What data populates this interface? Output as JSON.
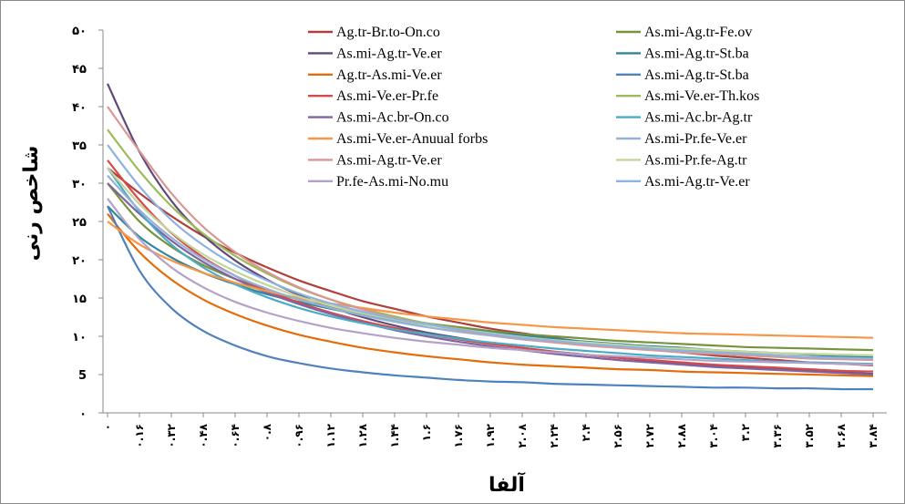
{
  "chart_data": {
    "type": "line",
    "xlabel": "آلفا",
    "ylabel": "شاخص رنی",
    "ylim": [
      0,
      50
    ],
    "xlim": [
      0,
      3.84
    ],
    "y_ticks": [
      0,
      5,
      10,
      15,
      20,
      25,
      30,
      35,
      40,
      45,
      50
    ],
    "y_tick_labels": [
      "۰",
      "5",
      "۱۰",
      "۱۵",
      "۲۰",
      "۲۵",
      "۳۰",
      "۳۵",
      "۴۰",
      "۴۵",
      "۵۰"
    ],
    "x_ticks": [
      0,
      0.16,
      0.32,
      0.48,
      0.64,
      0.8,
      0.96,
      1.12,
      1.28,
      1.44,
      1.6,
      1.76,
      1.92,
      2.08,
      2.24,
      2.4,
      2.56,
      2.72,
      2.88,
      3.04,
      3.2,
      3.36,
      3.52,
      3.68,
      3.84
    ],
    "x_tick_labels": [
      "۰",
      "۰.۱۶",
      "۰.۳۲",
      "۰.۴۸",
      "۰.۶۴",
      "۰.۸",
      "۰.۹۶",
      "۱.۱۲",
      "۱.۲۸",
      "۱.۴۴",
      "۱.۶",
      "۱.۷۶",
      "۱.۹۲",
      "۲.۰۸",
      "۲.۲۴",
      "۲.۴",
      "۲.۵۶",
      "۲.۷۲",
      "۲.۸۸",
      "۳.۰۴",
      "۳.۲",
      "۳.۳۶",
      "۳.۵۲",
      "۳.۶۸",
      "۳.۸۴"
    ],
    "grid": false,
    "legend_position": "top-right",
    "x": [
      0,
      0.16,
      0.32,
      0.48,
      0.64,
      0.8,
      0.96,
      1.12,
      1.28,
      1.44,
      1.6,
      1.76,
      1.92,
      2.08,
      2.24,
      2.4,
      2.56,
      2.72,
      2.88,
      3.04,
      3.2,
      3.36,
      3.52,
      3.68,
      3.84
    ],
    "series": [
      {
        "name": "Ag.tr-Br.to-On.co",
        "color": "#b0403c",
        "values": [
          32.0,
          28.7,
          25.7,
          23.1,
          20.9,
          19.0,
          17.3,
          15.9,
          14.6,
          13.6,
          12.6,
          11.8,
          11.0,
          10.4,
          9.8,
          9.2,
          8.8,
          8.3,
          7.9,
          7.5,
          7.2,
          6.9,
          6.6,
          6.4,
          6.2
        ]
      },
      {
        "name": "As.mi-Ag.tr-Fe.ov",
        "color": "#77933c",
        "values": [
          30.0,
          25.0,
          21.7,
          19.3,
          17.5,
          16.0,
          14.8,
          13.8,
          13.0,
          12.3,
          11.7,
          11.2,
          10.7,
          10.3,
          10.0,
          9.7,
          9.4,
          9.2,
          9.0,
          8.8,
          8.6,
          8.5,
          8.4,
          8.3,
          8.2
        ]
      },
      {
        "name": "As.mi-Ag.tr-Ve.er",
        "color": "#604a7b",
        "values": [
          43.0,
          34.1,
          27.7,
          23.2,
          19.9,
          17.4,
          15.4,
          13.8,
          12.5,
          11.4,
          10.5,
          9.8,
          9.1,
          8.5,
          8.0,
          7.6,
          7.2,
          6.8,
          6.5,
          6.2,
          5.9,
          5.7,
          5.5,
          5.3,
          5.1
        ]
      },
      {
        "name": "As.mi-Ag.tr-St.ba",
        "color": "#31859c",
        "values": [
          27.0,
          23.0,
          20.3,
          18.3,
          16.8,
          15.5,
          14.5,
          13.6,
          12.8,
          12.1,
          11.5,
          11.0,
          10.5,
          10.1,
          9.7,
          9.3,
          9.0,
          8.7,
          8.5,
          8.2,
          8.0,
          7.8,
          7.6,
          7.4,
          7.3
        ]
      },
      {
        "name": "Ag.tr-As.mi-Ve.er",
        "color": "#e46c0a",
        "values": [
          26.0,
          21.0,
          17.4,
          14.8,
          12.9,
          11.4,
          10.2,
          9.3,
          8.5,
          7.9,
          7.4,
          7.0,
          6.6,
          6.3,
          6.1,
          5.9,
          5.7,
          5.6,
          5.4,
          5.3,
          5.2,
          5.1,
          5.0,
          4.9,
          4.8
        ]
      },
      {
        "name": "As.mi-Ag.tr-St.ba",
        "color": "#4f81bd",
        "values": [
          27.0,
          18.6,
          13.7,
          10.7,
          8.8,
          7.4,
          6.5,
          5.8,
          5.3,
          4.9,
          4.6,
          4.3,
          4.1,
          4.0,
          3.8,
          3.7,
          3.6,
          3.5,
          3.4,
          3.3,
          3.3,
          3.2,
          3.2,
          3.1,
          3.1
        ]
      },
      {
        "name": "As.mi-Ve.er-Pr.fe",
        "color": "#d84a4a",
        "values": [
          33.0,
          27.8,
          23.5,
          20.3,
          17.9,
          16.0,
          14.4,
          13.1,
          12.0,
          11.1,
          10.3,
          9.6,
          9.0,
          8.5,
          8.0,
          7.6,
          7.2,
          6.9,
          6.6,
          6.3,
          6.1,
          5.9,
          5.7,
          5.5,
          5.4
        ]
      },
      {
        "name": "As.mi-Ve.er-Th.kos",
        "color": "#9bbb59",
        "values": [
          37.0,
          31.6,
          27.0,
          23.4,
          20.5,
          18.2,
          16.3,
          14.8,
          13.6,
          12.6,
          11.7,
          11.0,
          10.4,
          9.9,
          9.5,
          9.1,
          8.8,
          8.5,
          8.3,
          8.1,
          7.9,
          7.8,
          7.7,
          7.6,
          7.5
        ]
      },
      {
        "name": "As.mi-Ac.br-On.co",
        "color": "#8064a2",
        "values": [
          30.0,
          26.0,
          22.5,
          19.7,
          17.5,
          15.7,
          14.2,
          12.9,
          11.8,
          10.8,
          10.0,
          9.3,
          8.7,
          8.2,
          7.7,
          7.3,
          6.9,
          6.6,
          6.3,
          6.0,
          5.8,
          5.6,
          5.4,
          5.2,
          5.0
        ]
      },
      {
        "name": "As.mi-Ac.br-Ag.tr",
        "color": "#4bacc6",
        "values": [
          32.0,
          26.3,
          22.0,
          19.0,
          16.8,
          15.1,
          13.7,
          12.6,
          11.7,
          10.9,
          10.3,
          9.7,
          9.2,
          8.8,
          8.4,
          8.1,
          7.8,
          7.5,
          7.3,
          7.1,
          6.9,
          6.7,
          6.6,
          6.5,
          6.4
        ]
      },
      {
        "name": "As.mi-Ve.er-Anuual forbs",
        "color": "#f79646",
        "values": [
          25.0,
          22.0,
          19.9,
          18.3,
          17.0,
          15.9,
          15.0,
          14.3,
          13.7,
          13.1,
          12.6,
          12.2,
          11.8,
          11.5,
          11.2,
          11.0,
          10.8,
          10.6,
          10.4,
          10.3,
          10.2,
          10.1,
          10.0,
          9.9,
          9.8
        ]
      },
      {
        "name": "As.mi-Pr.fe-Ve.er",
        "color": "#95b3d7",
        "values": [
          31.0,
          26.5,
          22.9,
          20.1,
          17.9,
          16.2,
          14.8,
          13.7,
          12.7,
          11.9,
          11.2,
          10.6,
          10.1,
          9.6,
          9.2,
          8.9,
          8.6,
          8.3,
          8.0,
          7.8,
          7.6,
          7.4,
          7.2,
          7.1,
          7.0
        ]
      },
      {
        "name": "As.mi-Ag.tr-Ve.er",
        "color": "#d99694",
        "values": [
          40.0,
          34.2,
          28.7,
          24.3,
          21.0,
          18.4,
          16.4,
          14.8,
          13.5,
          12.4,
          11.6,
          10.8,
          10.2,
          9.7,
          9.2,
          8.8,
          8.5,
          8.2,
          7.9,
          7.7,
          7.5,
          7.3,
          7.1,
          7.0,
          6.9
        ]
      },
      {
        "name": "As.mi-Pr.fe-Ag.tr",
        "color": "#c3d69b",
        "values": [
          32.0,
          27.3,
          23.6,
          20.7,
          18.5,
          16.7,
          15.2,
          14.0,
          13.0,
          12.2,
          11.5,
          10.9,
          10.4,
          9.9,
          9.5,
          9.2,
          8.9,
          8.6,
          8.4,
          8.2,
          8.0,
          7.8,
          7.7,
          7.6,
          7.5
        ]
      },
      {
        "name": "Pr.fe-As.mi-No.mu",
        "color": "#b3a2c7",
        "values": [
          28.0,
          22.7,
          19.0,
          16.4,
          14.5,
          13.1,
          12.0,
          11.1,
          10.4,
          9.8,
          9.3,
          8.9,
          8.5,
          8.2,
          7.9,
          7.6,
          7.4,
          7.2,
          7.0,
          6.8,
          6.7,
          6.6,
          6.5,
          6.4,
          6.3
        ]
      },
      {
        "name": "As.mi-Ag.tr-Ve.er",
        "color": "#8db3e2",
        "values": [
          35.0,
          29.6,
          25.2,
          21.9,
          19.3,
          17.3,
          15.6,
          14.3,
          13.2,
          12.3,
          11.6,
          10.9,
          10.3,
          9.8,
          9.4,
          9.0,
          8.7,
          8.4,
          8.1,
          7.9,
          7.7,
          7.5,
          7.3,
          7.2,
          7.1
        ]
      }
    ]
  }
}
